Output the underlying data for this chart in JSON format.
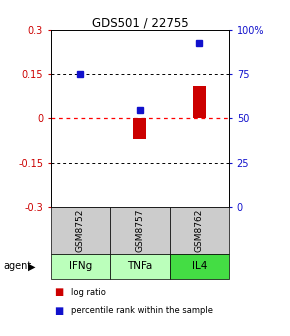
{
  "title": "GDS501 / 22755",
  "categories": [
    "IFNg",
    "TNFa",
    "IL4"
  ],
  "sample_ids": [
    "GSM8752",
    "GSM8757",
    "GSM8762"
  ],
  "log_ratios": [
    0.002,
    -0.07,
    0.11
  ],
  "percentile_ranks_pct": [
    75,
    55,
    93
  ],
  "ylim_left": [
    -0.3,
    0.3
  ],
  "ylim_right": [
    0,
    100
  ],
  "yticks_left": [
    -0.3,
    -0.15,
    0.0,
    0.15,
    0.3
  ],
  "yticks_right": [
    0,
    25,
    50,
    75,
    100
  ],
  "ytick_labels_left": [
    "-0.3",
    "-0.15",
    "0",
    "0.15",
    "0.3"
  ],
  "ytick_labels_right": [
    "0",
    "25",
    "50",
    "75",
    "100%"
  ],
  "bar_color_log": "#cc0000",
  "bar_color_pct": "#1111cc",
  "cell_color_gsm": "#cccccc",
  "agent_colors": [
    "#bbffbb",
    "#bbffbb",
    "#44dd44"
  ],
  "hline_color": "#ff0000",
  "dotted_color": "#000000",
  "bg_color": "#ffffff",
  "legend_log": "log ratio",
  "legend_pct": "percentile rank within the sample",
  "bar_width": 0.4
}
